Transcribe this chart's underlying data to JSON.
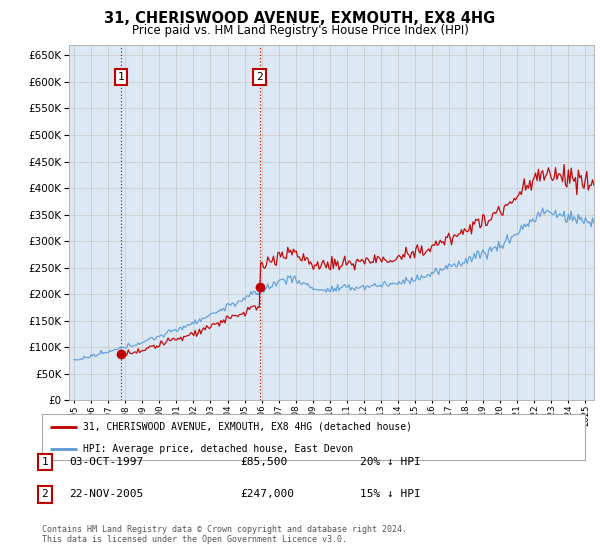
{
  "title": "31, CHERISWOOD AVENUE, EXMOUTH, EX8 4HG",
  "subtitle": "Price paid vs. HM Land Registry's House Price Index (HPI)",
  "ylim": [
    0,
    670000
  ],
  "yticks": [
    0,
    50000,
    100000,
    150000,
    200000,
    250000,
    300000,
    350000,
    400000,
    450000,
    500000,
    550000,
    600000,
    650000
  ],
  "xlim_start": 1994.7,
  "xlim_end": 2025.5,
  "grid_color": "#cccccc",
  "background_color": "#ffffff",
  "plot_bg_color": "#dce9f5",
  "hpi_color": "#5b9bd5",
  "price_color": "#c00000",
  "t1_year": 1997.75,
  "t1_price": 85500,
  "t2_year": 2005.9,
  "t2_price": 247000,
  "legend_label_price": "31, CHERISWOOD AVENUE, EXMOUTH, EX8 4HG (detached house)",
  "legend_label_hpi": "HPI: Average price, detached house, East Devon",
  "transaction1_date": "03-OCT-1997",
  "transaction1_price": "£85,500",
  "transaction1_pct": "20% ↓ HPI",
  "transaction2_date": "22-NOV-2005",
  "transaction2_price": "£247,000",
  "transaction2_pct": "15% ↓ HPI",
  "footnote_line1": "Contains HM Land Registry data © Crown copyright and database right 2024.",
  "footnote_line2": "This data is licensed under the Open Government Licence v3.0."
}
